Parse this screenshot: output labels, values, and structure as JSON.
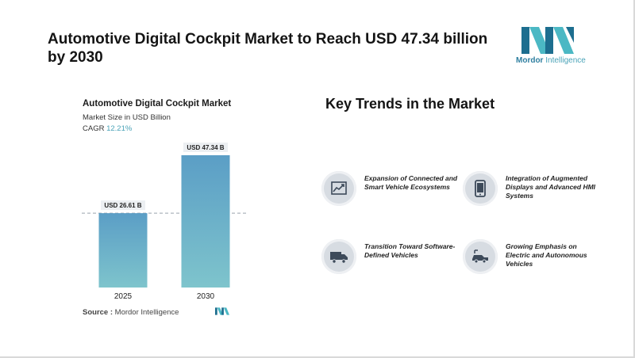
{
  "title": "Automotive Digital Cockpit Market to Reach USD 47.34 billion by 2030",
  "logo": {
    "brand": "Mordor",
    "suffix": " Intelligence"
  },
  "chart": {
    "title": "Automotive Digital Cockpit Market",
    "subtitle": "Market Size in USD Billion",
    "cagr_label": "CAGR ",
    "cagr_value": "12.21%"
  },
  "chart_data": {
    "type": "bar",
    "title": "Automotive Digital Cockpit Market",
    "ylabel": "Market Size in USD Billion",
    "categories": [
      "2025",
      "2030"
    ],
    "values": [
      26.61,
      47.34
    ],
    "data_labels": [
      "USD 26.61 B",
      "USD 47.34 B"
    ],
    "ylim": [
      0,
      47.34
    ],
    "reference_line": 26.61,
    "grid": false,
    "bar_color": "#5b9ec6"
  },
  "source": {
    "label": "Source : ",
    "value": "Mordor Intelligence"
  },
  "trends": {
    "title": "Key Trends in the Market",
    "items": [
      {
        "label": "Expansion of Connected and Smart Vehicle Ecosystems",
        "icon": "line-chart-icon"
      },
      {
        "label": "Integration of Augmented Displays and Advanced HMI Systems",
        "icon": "smartphone-icon"
      },
      {
        "label": "Transition Toward Software-Defined Vehicles",
        "icon": "truck-icon"
      },
      {
        "label": "Growing Emphasis on Electric and Autonomous Vehicles",
        "icon": "electric-car-icon"
      }
    ]
  }
}
